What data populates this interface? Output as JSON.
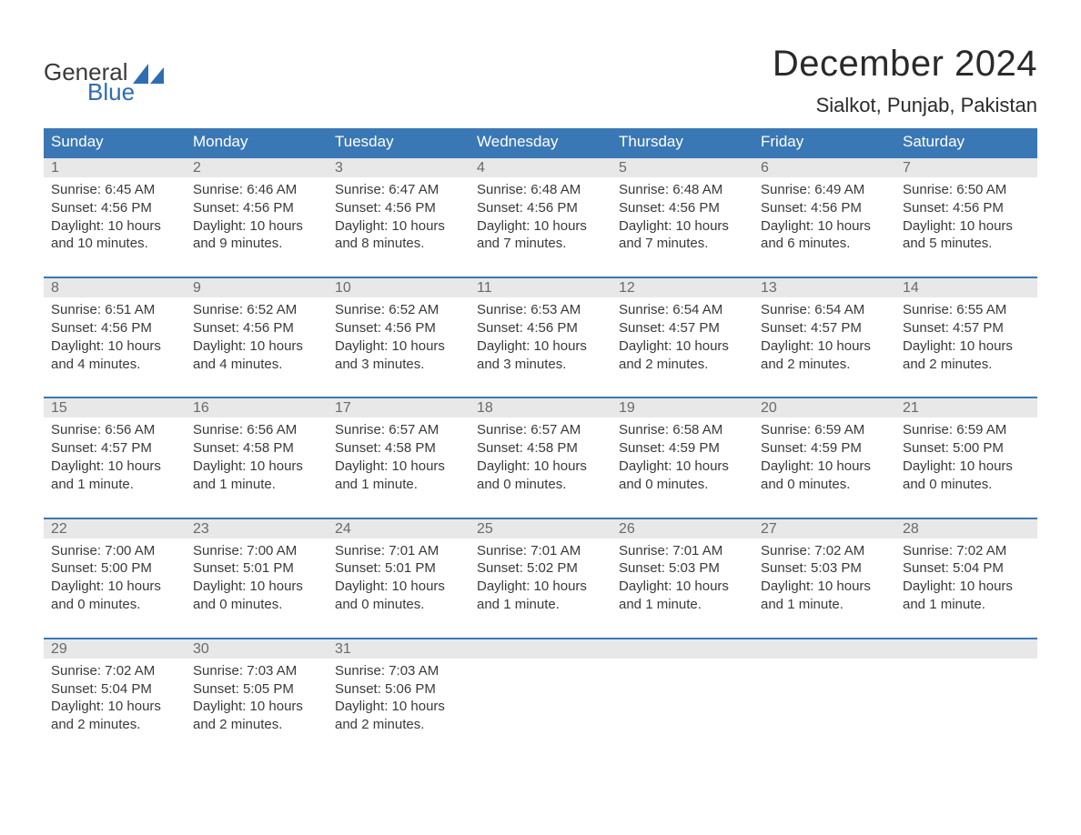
{
  "logo": {
    "text1": "General",
    "text2": "Blue",
    "sail_color": "#2f6db0",
    "text1_color": "#3a3a3a",
    "text2_color": "#2f6db0"
  },
  "title": "December 2024",
  "location": "Sialkot, Punjab, Pakistan",
  "colors": {
    "header_bg": "#3a78b5",
    "header_text": "#ffffff",
    "daynum_bg": "#e8e8e8",
    "daynum_text": "#6a6a6a",
    "body_text": "#3a3a3a",
    "week_border": "#3a78b5",
    "page_bg": "#ffffff"
  },
  "day_names": [
    "Sunday",
    "Monday",
    "Tuesday",
    "Wednesday",
    "Thursday",
    "Friday",
    "Saturday"
  ],
  "weeks": [
    [
      {
        "n": "1",
        "sr": "6:45 AM",
        "ss": "4:56 PM",
        "dl": "10 hours and 10 minutes."
      },
      {
        "n": "2",
        "sr": "6:46 AM",
        "ss": "4:56 PM",
        "dl": "10 hours and 9 minutes."
      },
      {
        "n": "3",
        "sr": "6:47 AM",
        "ss": "4:56 PM",
        "dl": "10 hours and 8 minutes."
      },
      {
        "n": "4",
        "sr": "6:48 AM",
        "ss": "4:56 PM",
        "dl": "10 hours and 7 minutes."
      },
      {
        "n": "5",
        "sr": "6:48 AM",
        "ss": "4:56 PM",
        "dl": "10 hours and 7 minutes."
      },
      {
        "n": "6",
        "sr": "6:49 AM",
        "ss": "4:56 PM",
        "dl": "10 hours and 6 minutes."
      },
      {
        "n": "7",
        "sr": "6:50 AM",
        "ss": "4:56 PM",
        "dl": "10 hours and 5 minutes."
      }
    ],
    [
      {
        "n": "8",
        "sr": "6:51 AM",
        "ss": "4:56 PM",
        "dl": "10 hours and 4 minutes."
      },
      {
        "n": "9",
        "sr": "6:52 AM",
        "ss": "4:56 PM",
        "dl": "10 hours and 4 minutes."
      },
      {
        "n": "10",
        "sr": "6:52 AM",
        "ss": "4:56 PM",
        "dl": "10 hours and 3 minutes."
      },
      {
        "n": "11",
        "sr": "6:53 AM",
        "ss": "4:56 PM",
        "dl": "10 hours and 3 minutes."
      },
      {
        "n": "12",
        "sr": "6:54 AM",
        "ss": "4:57 PM",
        "dl": "10 hours and 2 minutes."
      },
      {
        "n": "13",
        "sr": "6:54 AM",
        "ss": "4:57 PM",
        "dl": "10 hours and 2 minutes."
      },
      {
        "n": "14",
        "sr": "6:55 AM",
        "ss": "4:57 PM",
        "dl": "10 hours and 2 minutes."
      }
    ],
    [
      {
        "n": "15",
        "sr": "6:56 AM",
        "ss": "4:57 PM",
        "dl": "10 hours and 1 minute."
      },
      {
        "n": "16",
        "sr": "6:56 AM",
        "ss": "4:58 PM",
        "dl": "10 hours and 1 minute."
      },
      {
        "n": "17",
        "sr": "6:57 AM",
        "ss": "4:58 PM",
        "dl": "10 hours and 1 minute."
      },
      {
        "n": "18",
        "sr": "6:57 AM",
        "ss": "4:58 PM",
        "dl": "10 hours and 0 minutes."
      },
      {
        "n": "19",
        "sr": "6:58 AM",
        "ss": "4:59 PM",
        "dl": "10 hours and 0 minutes."
      },
      {
        "n": "20",
        "sr": "6:59 AM",
        "ss": "4:59 PM",
        "dl": "10 hours and 0 minutes."
      },
      {
        "n": "21",
        "sr": "6:59 AM",
        "ss": "5:00 PM",
        "dl": "10 hours and 0 minutes."
      }
    ],
    [
      {
        "n": "22",
        "sr": "7:00 AM",
        "ss": "5:00 PM",
        "dl": "10 hours and 0 minutes."
      },
      {
        "n": "23",
        "sr": "7:00 AM",
        "ss": "5:01 PM",
        "dl": "10 hours and 0 minutes."
      },
      {
        "n": "24",
        "sr": "7:01 AM",
        "ss": "5:01 PM",
        "dl": "10 hours and 0 minutes."
      },
      {
        "n": "25",
        "sr": "7:01 AM",
        "ss": "5:02 PM",
        "dl": "10 hours and 1 minute."
      },
      {
        "n": "26",
        "sr": "7:01 AM",
        "ss": "5:03 PM",
        "dl": "10 hours and 1 minute."
      },
      {
        "n": "27",
        "sr": "7:02 AM",
        "ss": "5:03 PM",
        "dl": "10 hours and 1 minute."
      },
      {
        "n": "28",
        "sr": "7:02 AM",
        "ss": "5:04 PM",
        "dl": "10 hours and 1 minute."
      }
    ],
    [
      {
        "n": "29",
        "sr": "7:02 AM",
        "ss": "5:04 PM",
        "dl": "10 hours and 2 minutes."
      },
      {
        "n": "30",
        "sr": "7:03 AM",
        "ss": "5:05 PM",
        "dl": "10 hours and 2 minutes."
      },
      {
        "n": "31",
        "sr": "7:03 AM",
        "ss": "5:06 PM",
        "dl": "10 hours and 2 minutes."
      },
      null,
      null,
      null,
      null
    ]
  ],
  "labels": {
    "sunrise": "Sunrise:",
    "sunset": "Sunset:",
    "daylight": "Daylight:"
  },
  "typography": {
    "title_fontsize": 40,
    "location_fontsize": 22,
    "header_fontsize": 17,
    "body_fontsize": 15,
    "daynum_fontsize": 16
  }
}
